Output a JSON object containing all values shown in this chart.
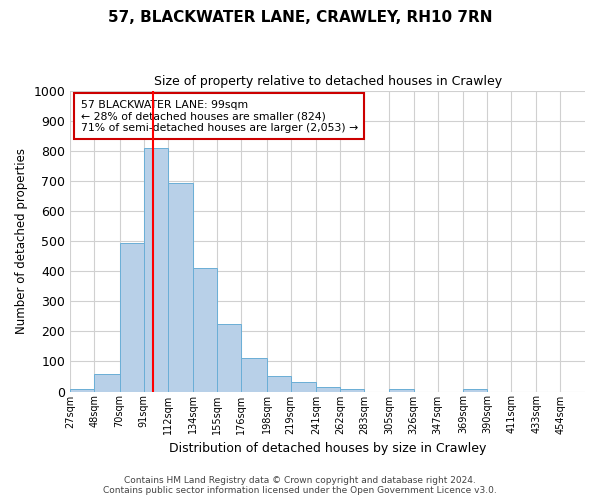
{
  "title1": "57, BLACKWATER LANE, CRAWLEY, RH10 7RN",
  "title2": "Size of property relative to detached houses in Crawley",
  "xlabel": "Distribution of detached houses by size in Crawley",
  "ylabel": "Number of detached properties",
  "footer1": "Contains HM Land Registry data © Crown copyright and database right 2024.",
  "footer2": "Contains public sector information licensed under the Open Government Licence v3.0.",
  "bin_edges": [
    27,
    48,
    70,
    91,
    112,
    134,
    155,
    176,
    198,
    219,
    241,
    262,
    283,
    305,
    326,
    347,
    369,
    390,
    411,
    433,
    454
  ],
  "bar_heights": [
    8,
    58,
    495,
    808,
    693,
    412,
    225,
    113,
    53,
    30,
    15,
    10,
    0,
    10,
    0,
    0,
    10,
    0,
    0,
    0
  ],
  "bar_color": "#b8d0e8",
  "bar_edgecolor": "#6aaed6",
  "grid_color": "#d0d0d0",
  "red_line_x": 99,
  "ylim": [
    0,
    1000
  ],
  "yticks": [
    0,
    100,
    200,
    300,
    400,
    500,
    600,
    700,
    800,
    900,
    1000
  ],
  "annotation_text": "57 BLACKWATER LANE: 99sqm\n← 28% of detached houses are smaller (824)\n71% of semi-detached houses are larger (2,053) →",
  "annotation_box_color": "#ffffff",
  "annotation_box_edgecolor": "#cc0000",
  "tick_labels": [
    "27sqm",
    "48sqm",
    "70sqm",
    "91sqm",
    "112sqm",
    "134sqm",
    "155sqm",
    "176sqm",
    "198sqm",
    "219sqm",
    "241sqm",
    "262sqm",
    "283sqm",
    "305sqm",
    "326sqm",
    "347sqm",
    "369sqm",
    "390sqm",
    "411sqm",
    "433sqm",
    "454sqm"
  ]
}
